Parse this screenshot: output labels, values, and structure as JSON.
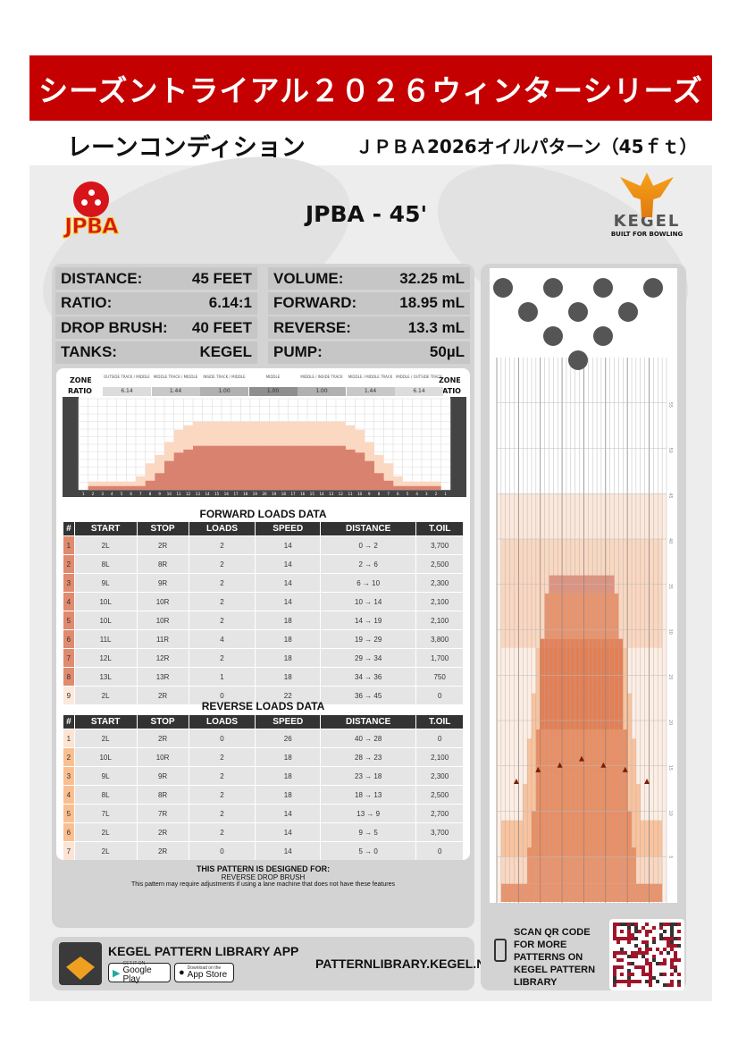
{
  "banner": {
    "title": "シーズントライアル２０２６ウィンターシリーズ"
  },
  "subtitle": {
    "left": "レーンコンディション",
    "right": "ＪＰＢＡ2026オイルパターン（45ｆｔ）"
  },
  "logos": {
    "jpba": "JPBA",
    "kegel": "KEGEL",
    "kegel_tagline": "BUILT FOR BOWLING"
  },
  "pattern_name": "JPBA - 45'",
  "stats": [
    {
      "label": "DISTANCE:",
      "value": "45 FEET"
    },
    {
      "label": "VOLUME:",
      "value": "32.25 mL"
    },
    {
      "label": "RATIO:",
      "value": "6.14:1"
    },
    {
      "label": "FORWARD:",
      "value": "18.95 mL"
    },
    {
      "label": "DROP BRUSH:",
      "value": "40 FEET"
    },
    {
      "label": "REVERSE:",
      "value": "13.3 mL"
    },
    {
      "label": "TANKS:",
      "value": "KEGEL"
    },
    {
      "label": "PUMP:",
      "value": "50µL"
    }
  ],
  "zone_chart": {
    "zone_label": "ZONE",
    "ratio_label": "RATIO",
    "zones": [
      {
        "name": "OUTSIDE TRACK / MIDDLE",
        "ratio": "6.14"
      },
      {
        "name": "MIDDLE TRACK / MIDDLE",
        "ratio": "1.44"
      },
      {
        "name": "INSIDE TRACK / MIDDLE",
        "ratio": "1.00"
      },
      {
        "name": "MIDDLE",
        "ratio": "1.00"
      },
      {
        "name": "MIDDLE / INSIDE TRACK",
        "ratio": "1.00"
      },
      {
        "name": "MIDDLE / MIDDLE TRACK",
        "ratio": "1.44"
      },
      {
        "name": "MIDDLE / OUTSIDE TRACK",
        "ratio": "6.14"
      }
    ],
    "ratio_colors": [
      "#dcdcdc",
      "#c8c8c8",
      "#b0b0b0",
      "#8e8e8e",
      "#b0b0b0",
      "#c8c8c8",
      "#dcdcdc"
    ]
  },
  "chart_data": {
    "type": "bar",
    "categories": [
      "1",
      "2",
      "3",
      "4",
      "5",
      "6",
      "7",
      "8",
      "9",
      "10",
      "11",
      "12",
      "13",
      "14",
      "15",
      "16",
      "17",
      "18",
      "19",
      "20",
      "19",
      "18",
      "17",
      "16",
      "15",
      "14",
      "13",
      "12",
      "11",
      "10",
      "9",
      "8",
      "7",
      "6",
      "5",
      "4",
      "3",
      "2",
      "1"
    ],
    "series": [
      {
        "values": [
          0,
          1.1,
          1.1,
          1.1,
          1.1,
          1.1,
          1.8,
          3.5,
          4.6,
          6.3,
          7.9,
          8.5,
          9,
          9,
          9,
          9,
          9,
          9,
          9,
          9,
          9,
          9,
          9,
          9,
          9,
          9,
          9,
          9,
          8.5,
          7.9,
          6.3,
          4.6,
          3.5,
          1.8,
          1.1,
          1.1,
          1.1,
          1.1,
          0
        ],
        "color": "#fbd8c2"
      },
      {
        "values": [
          0,
          0.5,
          0.5,
          0.5,
          0.5,
          0.5,
          0.5,
          1.2,
          2.2,
          3.8,
          4.9,
          5.3,
          5.8,
          5.8,
          5.8,
          5.8,
          5.8,
          5.8,
          5.8,
          5.8,
          5.8,
          5.8,
          5.8,
          5.8,
          5.8,
          5.8,
          5.8,
          5.8,
          5.3,
          4.9,
          3.8,
          2.2,
          1.2,
          0.5,
          0.5,
          0.5,
          0.5,
          0.5,
          0
        ],
        "color": "#d9826f"
      }
    ],
    "ylim": [
      0,
      12
    ],
    "grid": true
  },
  "forward": {
    "title": "FORWARD LOADS DATA",
    "headers": [
      "#",
      "START",
      "STOP",
      "LOADS",
      "SPEED",
      "DISTANCE",
      "T.OIL"
    ],
    "rows": [
      [
        "1",
        "2L",
        "2R",
        "2",
        "14",
        "0 → 2",
        "3,700"
      ],
      [
        "2",
        "8L",
        "8R",
        "2",
        "14",
        "2 → 6",
        "2,500"
      ],
      [
        "3",
        "9L",
        "9R",
        "2",
        "14",
        "6 → 10",
        "2,300"
      ],
      [
        "4",
        "10L",
        "10R",
        "2",
        "14",
        "10 → 14",
        "2,100"
      ],
      [
        "5",
        "10L",
        "10R",
        "2",
        "18",
        "14 → 19",
        "2,100"
      ],
      [
        "6",
        "11L",
        "11R",
        "4",
        "18",
        "19 → 29",
        "3,800"
      ],
      [
        "7",
        "12L",
        "12R",
        "2",
        "18",
        "29 → 34",
        "1,700"
      ],
      [
        "8",
        "13L",
        "13R",
        "1",
        "18",
        "34 → 36",
        "750"
      ],
      [
        "9",
        "2L",
        "2R",
        "0",
        "22",
        "36 → 45",
        "0"
      ]
    ],
    "num_colors": [
      "#e08a6e",
      "#e08a6e",
      "#e08a6e",
      "#e08a6e",
      "#e08a6e",
      "#e08a6e",
      "#e08a6e",
      "#e08a6e",
      "#fde8dc"
    ]
  },
  "reverse": {
    "title": "REVERSE LOADS DATA",
    "headers": [
      "#",
      "START",
      "STOP",
      "LOADS",
      "SPEED",
      "DISTANCE",
      "T.OIL"
    ],
    "rows": [
      [
        "1",
        "2L",
        "2R",
        "0",
        "26",
        "40 → 28",
        "0"
      ],
      [
        "2",
        "10L",
        "10R",
        "2",
        "18",
        "28 → 23",
        "2,100"
      ],
      [
        "3",
        "9L",
        "9R",
        "2",
        "18",
        "23 → 18",
        "2,300"
      ],
      [
        "4",
        "8L",
        "8R",
        "2",
        "18",
        "18 → 13",
        "2,500"
      ],
      [
        "5",
        "7L",
        "7R",
        "2",
        "14",
        "13 → 9",
        "2,700"
      ],
      [
        "6",
        "2L",
        "2R",
        "2",
        "14",
        "9 → 5",
        "3,700"
      ],
      [
        "7",
        "2L",
        "2R",
        "0",
        "14",
        "5 → 0",
        "0"
      ]
    ],
    "num_colors": [
      "#fde3d3",
      "#f9bf90",
      "#f9bf90",
      "#f9bf90",
      "#f9bf90",
      "#f9bf90",
      "#fde3d3"
    ]
  },
  "designed": {
    "title": "THIS PATTERN IS DESIGNED FOR:",
    "feature": "REVERSE DROP BRUSH",
    "note": "This pattern may require adjustments if using a lane machine that does not have these features"
  },
  "app": {
    "title": "KEGEL PATTERN LIBRARY APP",
    "google": "Google Play",
    "apple": "App Store",
    "google_small": "GET IT ON",
    "apple_small": "Download on the",
    "url": "PATTERNLIBRARY.KEGEL.NET"
  },
  "lane": {
    "feet_labels": [
      "5",
      "10",
      "15",
      "20",
      "25",
      "30",
      "35",
      "40",
      "45",
      "50",
      "55"
    ]
  },
  "qr": {
    "text": "SCAN QR CODE FOR MORE PATTERNS ON KEGEL PATTERN LIBRARY"
  }
}
